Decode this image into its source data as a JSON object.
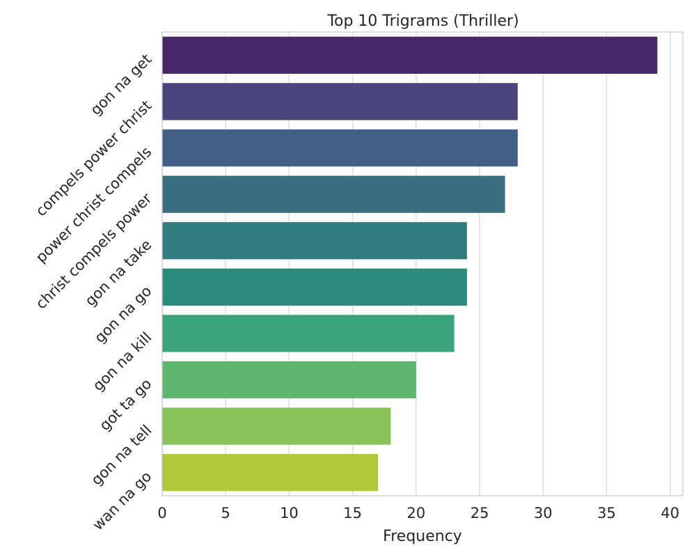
{
  "chart_data": {
    "type": "bar",
    "orientation": "horizontal",
    "title": "Top 10 Trigrams (Thriller)",
    "xlabel": "Frequency",
    "ylabel": "",
    "xlim": [
      0,
      41
    ],
    "xticks": [
      0,
      5,
      10,
      15,
      20,
      25,
      30,
      35,
      40
    ],
    "grid": true,
    "categories": [
      "gon na get",
      "compels power christ",
      "power christ compels",
      "christ compels power",
      "gon na take",
      "gon na go",
      "gon na kill",
      "got ta go",
      "gon na tell",
      "wan na go"
    ],
    "values": [
      39,
      28,
      28,
      27,
      24,
      24,
      23,
      20,
      18,
      17
    ],
    "colors": [
      "#482768",
      "#4a477f",
      "#435f86",
      "#3a6f81",
      "#2f7d7f",
      "#2c8b7c",
      "#3aa379",
      "#5fb66f",
      "#88c45a",
      "#b2c73a"
    ]
  }
}
